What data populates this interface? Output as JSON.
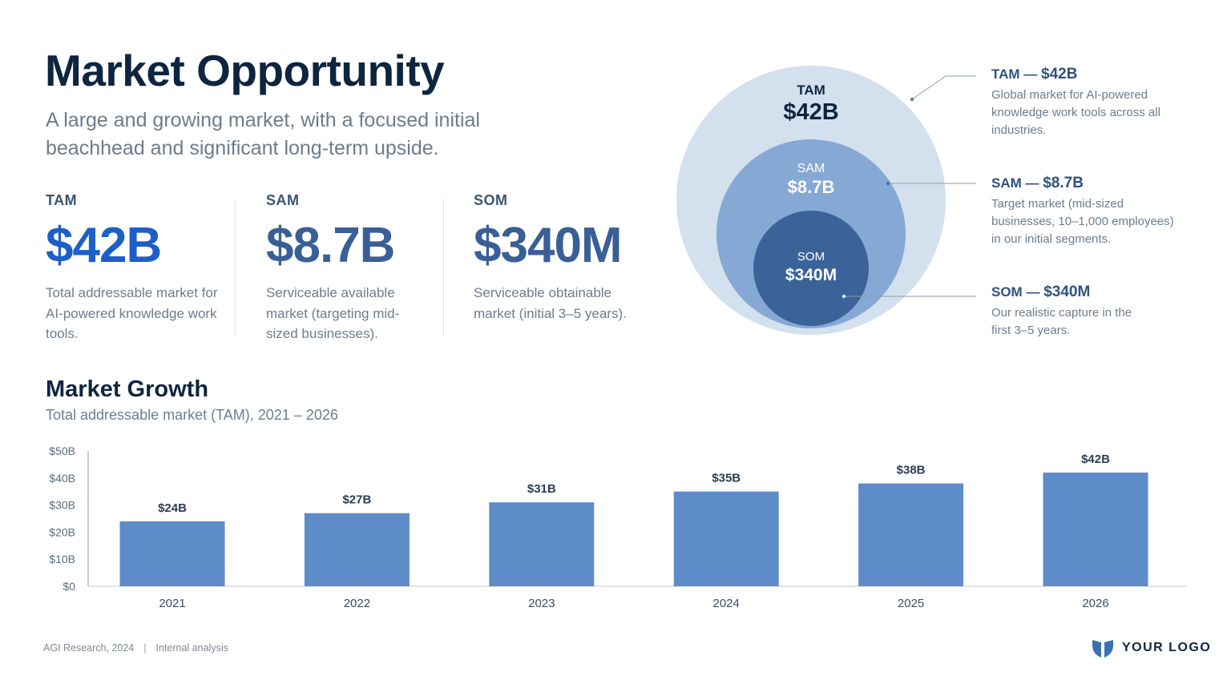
{
  "header": {
    "title": "Market Opportunity",
    "subtitle": "A large and growing market, with a focused initial beachhead and significant long-term upside."
  },
  "stats": {
    "tam": {
      "label": "TAM",
      "value": "$42B",
      "description": "Total addressable market for AI-powered knowledge work tools."
    },
    "sam": {
      "label": "SAM",
      "value": "$8.7B",
      "description": "Serviceable available market (targeting mid-sized businesses)."
    },
    "som": {
      "label": "SOM",
      "value": "$340M",
      "description": "Serviceable obtainable market (initial 3–5 years)."
    }
  },
  "circles": {
    "tam": {
      "label": "TAM",
      "value": "$42B",
      "color": "#d3e0ee"
    },
    "sam": {
      "label": "SAM",
      "value": "$8.7B",
      "color": "#86a8d4"
    },
    "som": {
      "label": "SOM",
      "value": "$340M",
      "color": "#3b6399"
    }
  },
  "annotations": {
    "tam": {
      "head_label": "TAM —",
      "head_value": "$42B",
      "text": "Global market for AI-powered knowledge work tools across all industries."
    },
    "sam": {
      "head_label": "SAM —",
      "head_value": "$8.7B",
      "text": "Target market (mid-sized businesses, 10–1,000 employees) in our initial segments."
    },
    "som": {
      "head_label": "SOM —",
      "head_value": "$340M",
      "text": "Our realistic capture in the first 3–5 years."
    }
  },
  "growth": {
    "title": "Market Growth",
    "subtitle": "Total addressable market (TAM), 2021 – 2026"
  },
  "chart_data": {
    "type": "bar",
    "categories": [
      "2021",
      "2022",
      "2023",
      "2024",
      "2025",
      "2026"
    ],
    "values": [
      24,
      27,
      31,
      35,
      38,
      42
    ],
    "data_labels": [
      "$24B",
      "$27B",
      "$31B",
      "$35B",
      "$38B",
      "$42B"
    ],
    "yticks": [
      0,
      10,
      20,
      30,
      40,
      50
    ],
    "ytick_labels": [
      "$0",
      "$10B",
      "$20B",
      "$30B",
      "$40B",
      "$50B"
    ],
    "ylim": [
      0,
      50
    ],
    "bar_color": "#5e8cc8",
    "grid": false
  },
  "footer": {
    "source": "AGI Research, 2024",
    "separator": "|",
    "note": "Internal analysis"
  },
  "logo": {
    "text": "YOUR LOGO",
    "icon": "shield-logo-icon",
    "color": "#3b6fb6"
  }
}
